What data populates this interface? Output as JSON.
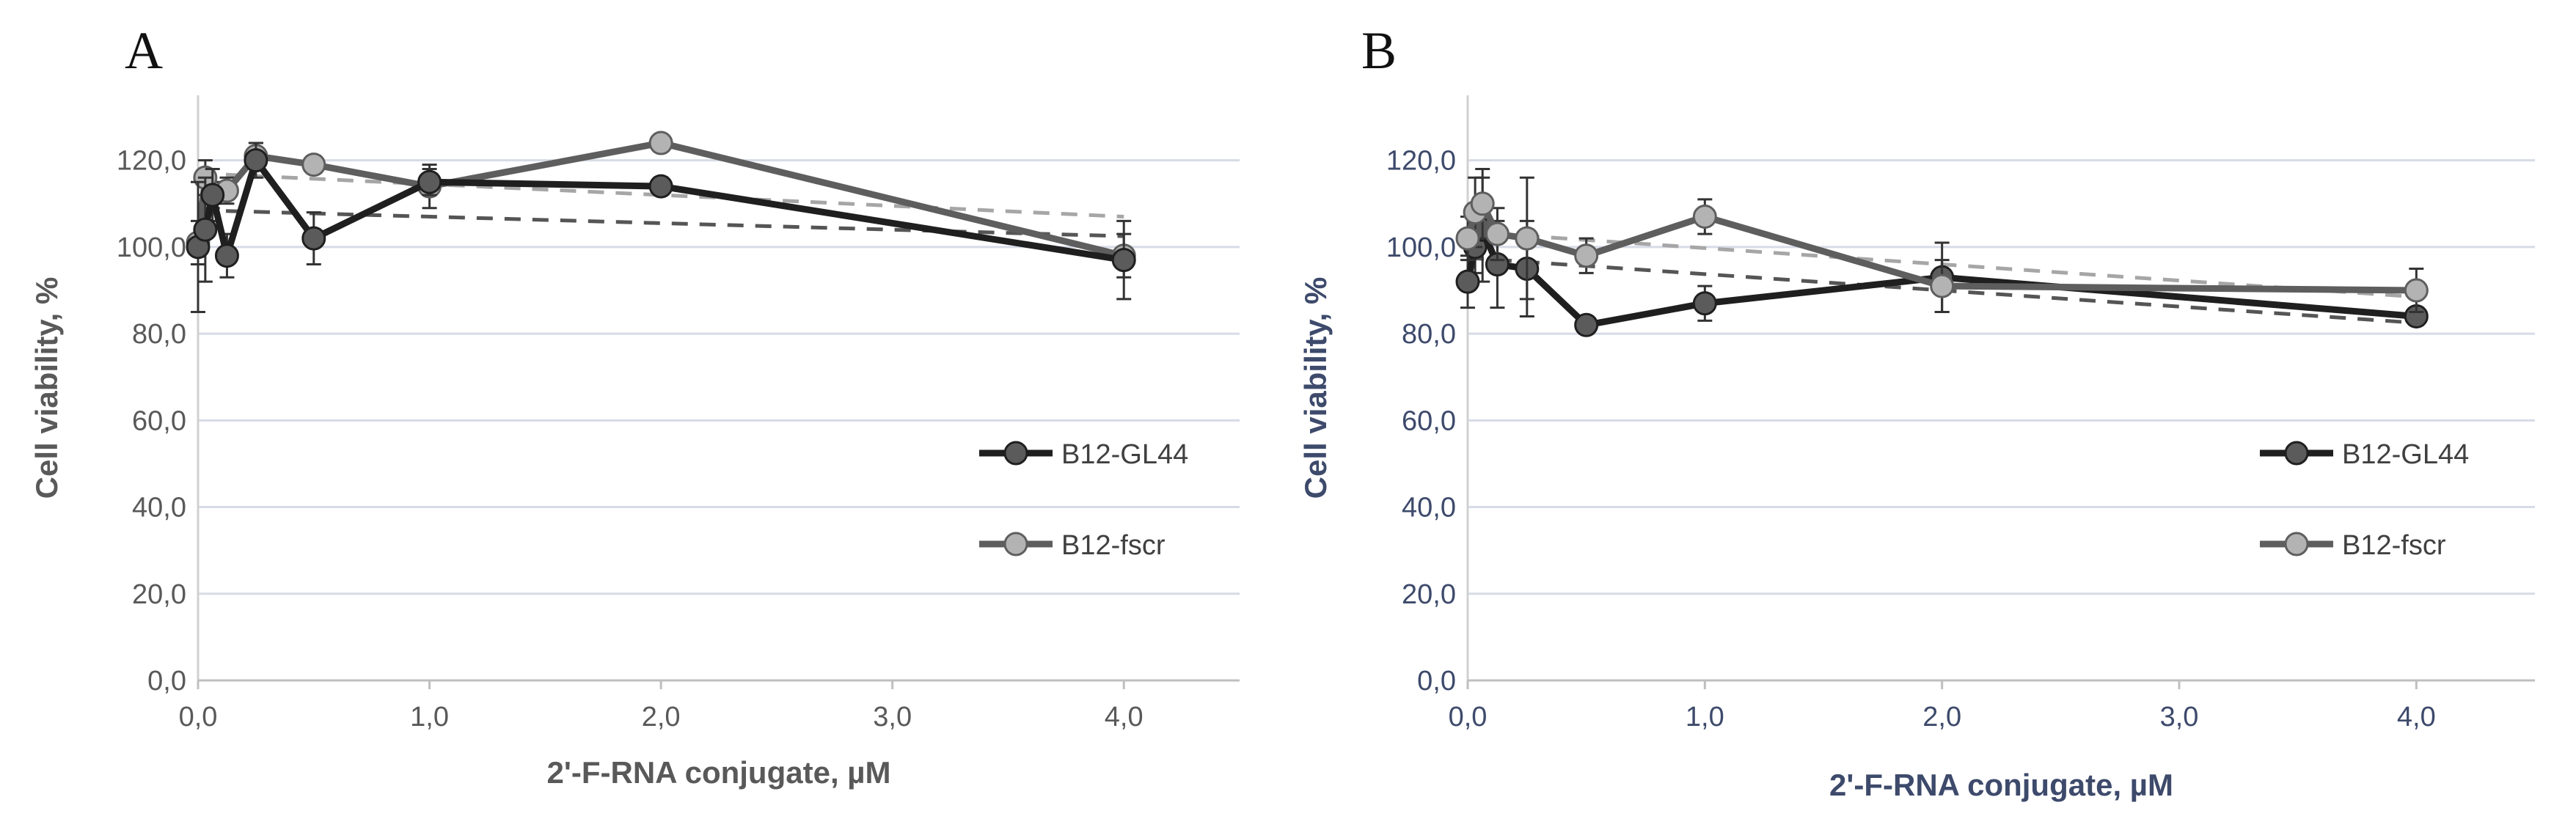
{
  "colors": {
    "gl44_line": "#1f1f1f",
    "gl44_marker": "#5b5b5b",
    "fscr_line": "#5e5e5e",
    "fscr_marker": "#b3b3b3",
    "grid": "#d6dbe6",
    "axis_text_a": "#595959",
    "axis_text_b": "#3d4a6b"
  },
  "chart_data": [
    {
      "panel": "A",
      "type": "line",
      "title": "",
      "xlabel": "2'-F-RNA conjugate, µM",
      "ylabel": "Cell viability, %",
      "xlim": [
        0,
        4.5
      ],
      "ylim": [
        0,
        135
      ],
      "xticks": [
        0,
        1,
        2,
        3,
        4
      ],
      "xtick_labels": [
        "0,0",
        "1,0",
        "2,0",
        "3,0",
        "4,0"
      ],
      "yticks": [
        0,
        20,
        40,
        60,
        80,
        100,
        120
      ],
      "ytick_labels": [
        "0,0",
        "20,0",
        "40,0",
        "60,0",
        "80,0",
        "100,0",
        "120,0"
      ],
      "grid": true,
      "legend_position": "right",
      "series": [
        {
          "name": "B12-GL44",
          "x": [
            0,
            0.0313,
            0.0625,
            0.125,
            0.25,
            0.5,
            1,
            2,
            4
          ],
          "y": [
            100,
            104,
            112,
            98,
            120,
            102,
            115,
            114,
            97
          ],
          "err": [
            15,
            12,
            6,
            5,
            4,
            6,
            3,
            2,
            9
          ],
          "trend": [
            108.5,
            102.5
          ]
        },
        {
          "name": "B12-fscr",
          "x": [
            0,
            0.0313,
            0.0625,
            0.125,
            0.25,
            0.5,
            1,
            2,
            4
          ],
          "y": [
            101,
            116,
            112,
            113,
            121,
            119,
            114,
            124,
            98
          ],
          "err": [
            5,
            4,
            3,
            3,
            3,
            2,
            5,
            2,
            5
          ],
          "trend": [
            117,
            107
          ]
        }
      ]
    },
    {
      "panel": "B",
      "type": "line",
      "title": "",
      "xlabel": "2'-F-RNA conjugate, µM",
      "ylabel": "Cell viability, %",
      "xlim": [
        0,
        4.5
      ],
      "ylim": [
        0,
        135
      ],
      "xticks": [
        0,
        1,
        2,
        3,
        4
      ],
      "xtick_labels": [
        "0,0",
        "1,0",
        "2,0",
        "3,0",
        "4,0"
      ],
      "yticks": [
        0,
        20,
        40,
        60,
        80,
        100,
        120
      ],
      "ytick_labels": [
        "0,0",
        "20,0",
        "40,0",
        "60,0",
        "80,0",
        "100,0",
        "120,0"
      ],
      "grid": true,
      "legend_position": "right",
      "series": [
        {
          "name": "B12-GL44",
          "x": [
            0,
            0.0313,
            0.0625,
            0.125,
            0.25,
            0.5,
            1,
            2,
            4
          ],
          "y": [
            92,
            100,
            104,
            96,
            95,
            82,
            87,
            93,
            84
          ],
          "err": [
            6,
            6,
            12,
            10,
            11,
            2,
            4,
            8,
            2
          ],
          "trend": [
            97.5,
            82.5
          ]
        },
        {
          "name": "B12-fscr",
          "x": [
            0,
            0.0313,
            0.0625,
            0.125,
            0.25,
            0.5,
            1,
            2,
            4
          ],
          "y": [
            102,
            108,
            110,
            103,
            102,
            98,
            107,
            91,
            90
          ],
          "err": [
            5,
            8,
            8,
            6,
            14,
            4,
            4,
            6,
            5
          ],
          "trend": [
            103.5,
            88.5
          ]
        }
      ]
    }
  ],
  "panels": [
    {
      "letter": "A"
    },
    {
      "letter": "B"
    }
  ]
}
